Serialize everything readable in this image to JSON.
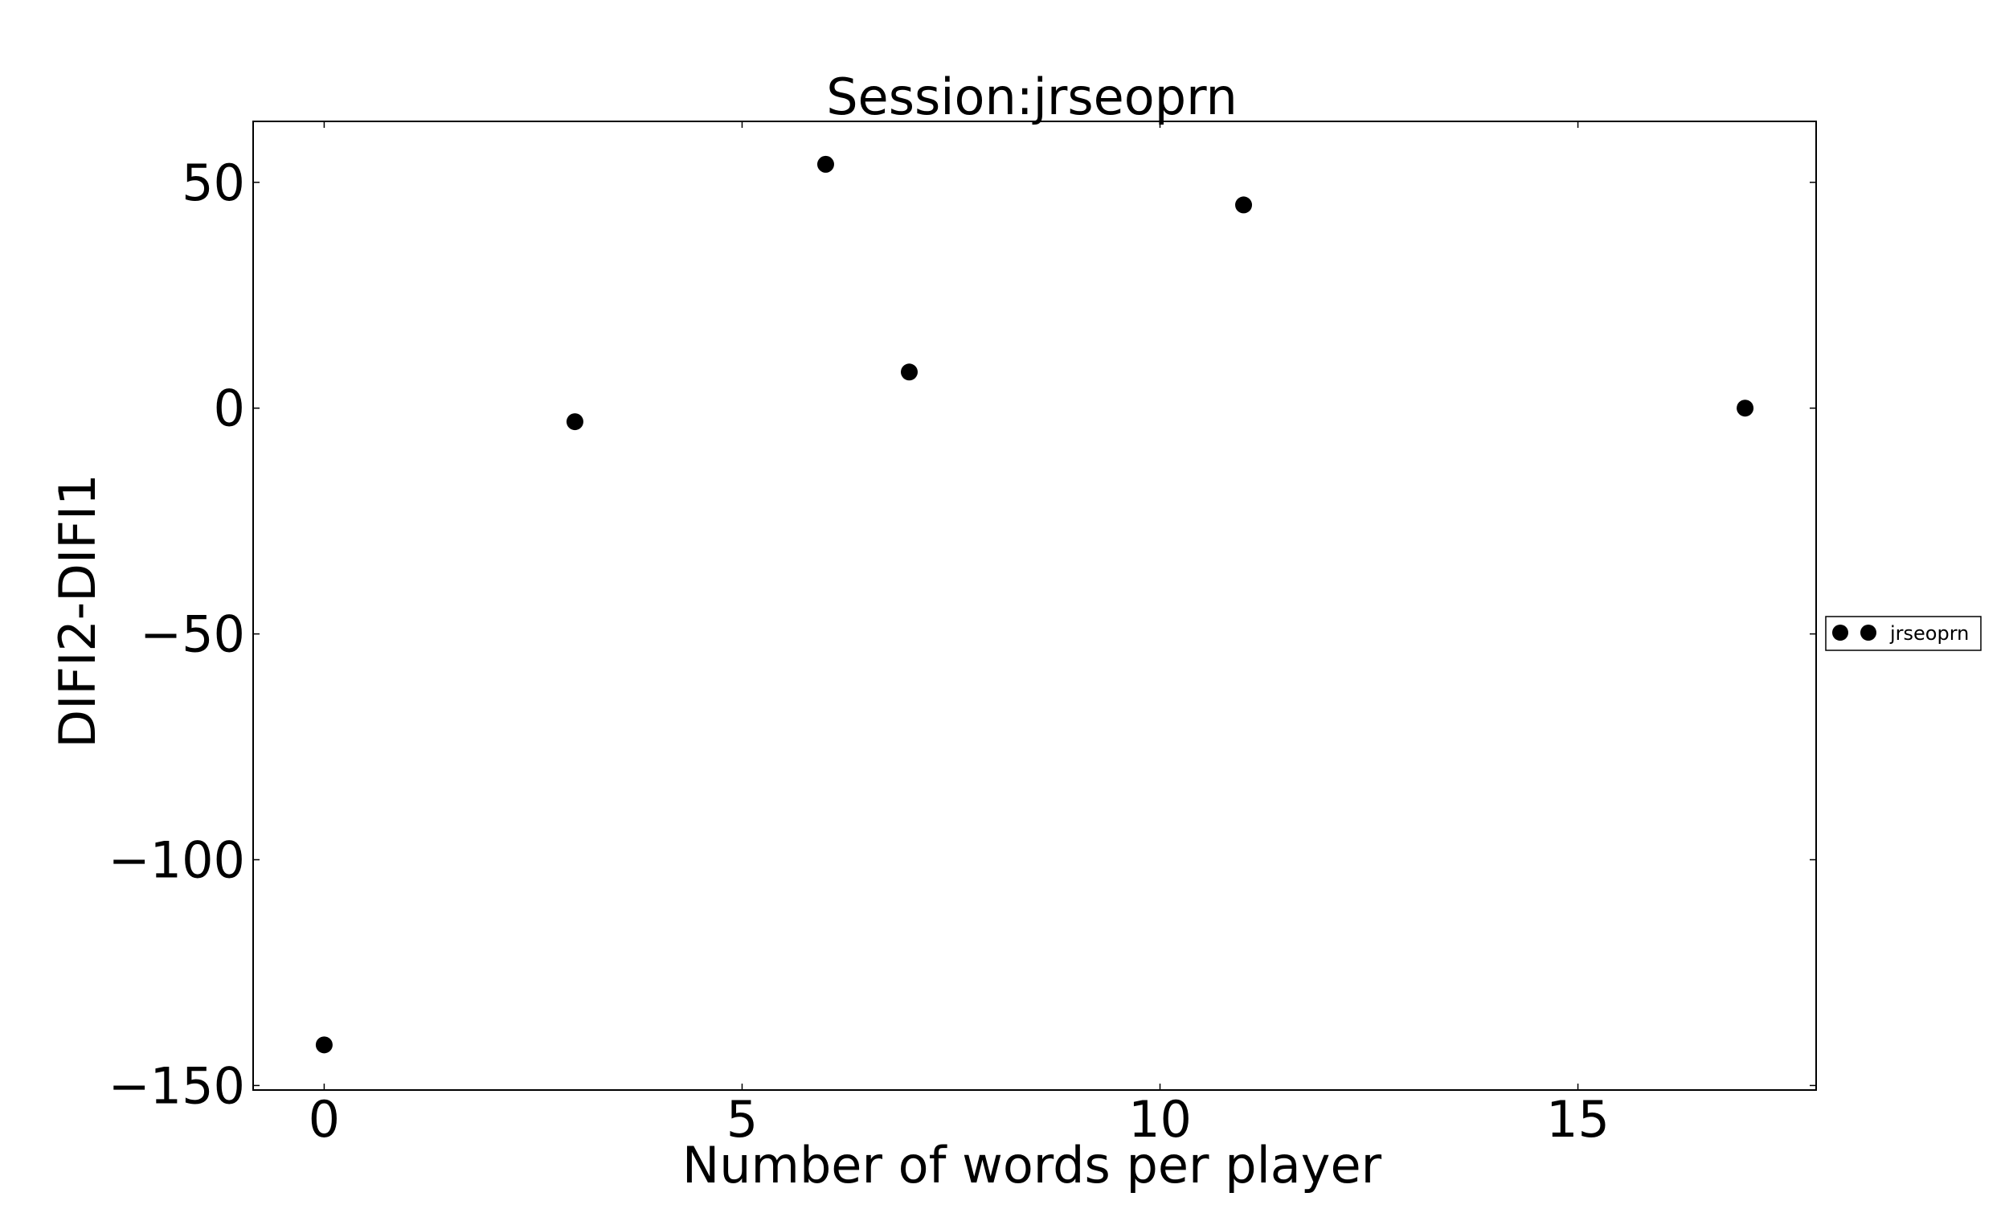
{
  "chart_data": {
    "type": "scatter",
    "title": "Session:jrseoprn",
    "xlabel": "Number of words per player",
    "ylabel": "DIFI2-DIFI1",
    "xlim": [
      -0.85,
      17.85
    ],
    "ylim": [
      -151,
      63.5
    ],
    "xticks": [
      0,
      5,
      10,
      15
    ],
    "xtick_labels": [
      "0",
      "5",
      "10",
      "15"
    ],
    "yticks": [
      50,
      0,
      -50,
      -100,
      -150
    ],
    "ytick_labels": [
      "50",
      "0",
      "−50",
      "−100",
      "−150"
    ],
    "grid": false,
    "legend_placement": "right, outside plot",
    "series": [
      {
        "name": "jrseoprn",
        "color": "#000000",
        "marker": "circle",
        "points": [
          {
            "x": 0,
            "y": -141
          },
          {
            "x": 3,
            "y": -3
          },
          {
            "x": 6,
            "y": 54
          },
          {
            "x": 7,
            "y": 8
          },
          {
            "x": 11,
            "y": 45
          },
          {
            "x": 17,
            "y": 0
          }
        ]
      }
    ]
  }
}
